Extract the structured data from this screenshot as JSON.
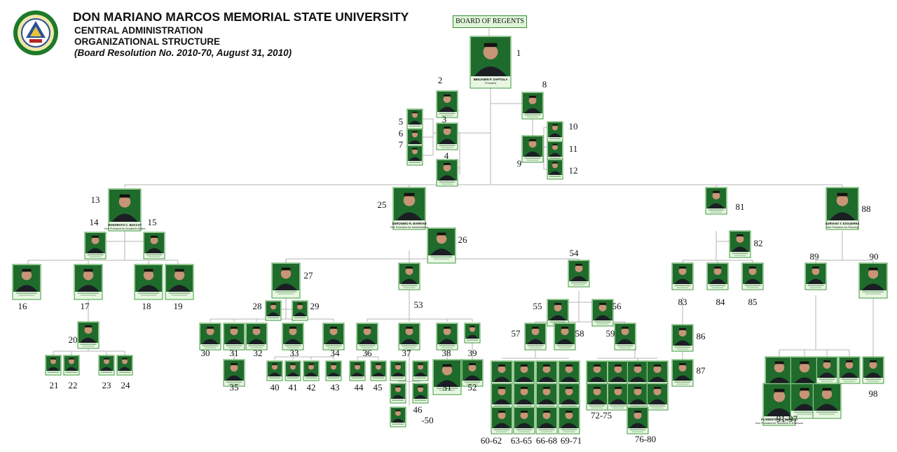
{
  "header": {
    "university": "DON MARIANO MARCOS MEMORIAL STATE UNIVERSITY",
    "line2": "CENTRAL ADMINISTRATION",
    "line3": "ORGANIZATIONAL STRUCTURE",
    "line4": "(Board Resolution No. 2010-70, August 31, 2010)"
  },
  "top_box": "BOARD OF REGENTS",
  "nodes": [
    {
      "size": "xl",
      "caption": "BENJAMIN P. SAPITULA",
      "sub": "President"
    },
    {
      "size": "s"
    },
    {
      "size": "s"
    },
    {
      "size": "s"
    },
    {
      "size": "xs"
    },
    {
      "size": "xs"
    },
    {
      "size": "xs"
    },
    {
      "size": "s"
    },
    {
      "size": "s"
    },
    {
      "size": "xs"
    },
    {
      "size": "xs"
    },
    {
      "size": "xs"
    },
    {
      "size": "l",
      "caption": "HONORATO C. BUCCAT",
      "sub": "Vice President for Academic Affairs"
    },
    {
      "size": "s"
    },
    {
      "size": "s"
    },
    {
      "size": "m"
    },
    {
      "size": "m"
    },
    {
      "size": "m"
    },
    {
      "size": "m"
    },
    {
      "size": "s"
    },
    {
      "size": "xs"
    },
    {
      "size": "xs"
    },
    {
      "size": "xs"
    },
    {
      "size": "xs"
    },
    {
      "size": "l",
      "caption": "GERONIMO R. BARRIAN",
      "sub": "Vice President for Administration"
    },
    {
      "size": "m"
    },
    {
      "size": "m"
    },
    {
      "size": "xs"
    },
    {
      "size": "xs"
    },
    {
      "size": "s"
    },
    {
      "size": "s"
    },
    {
      "size": "s"
    },
    {
      "size": "s"
    },
    {
      "size": "s"
    },
    {
      "size": "s"
    },
    {
      "size": "s"
    },
    {
      "size": "s"
    },
    {
      "size": "s"
    },
    {
      "size": "xs"
    },
    {
      "size": "xs"
    },
    {
      "size": "xs"
    },
    {
      "size": "xs"
    },
    {
      "size": "xs"
    },
    {
      "size": "xs"
    },
    {
      "size": "xs"
    },
    {
      "size": "xs"
    },
    {
      "size": "xs"
    },
    {
      "size": "xs"
    },
    {
      "size": "xs"
    },
    {
      "size": "xs"
    },
    {
      "size": "m"
    },
    {
      "size": "s"
    },
    {
      "size": "s"
    },
    {
      "size": "s"
    },
    {
      "size": "s"
    },
    {
      "size": "s"
    },
    {
      "size": "s"
    },
    {
      "size": "s"
    },
    {
      "size": "s"
    },
    {
      "size": "s"
    },
    {
      "size": "s"
    },
    {
      "size": "s"
    },
    {
      "size": "s"
    },
    {
      "size": "s"
    },
    {
      "size": "s"
    },
    {
      "size": "s"
    },
    {
      "size": "s"
    },
    {
      "size": "s"
    },
    {
      "size": "s"
    },
    {
      "size": "s"
    },
    {
      "size": "s"
    },
    {
      "size": "s"
    },
    {
      "size": "s"
    },
    {
      "size": "s"
    },
    {
      "size": "s"
    },
    {
      "size": "s"
    },
    {
      "size": "s"
    },
    {
      "size": "s"
    },
    {
      "size": "s"
    },
    {
      "size": "s"
    },
    {
      "size": "s"
    },
    {
      "size": "s"
    },
    {
      "size": "s"
    },
    {
      "size": "s"
    },
    {
      "size": "s"
    },
    {
      "size": "s"
    },
    {
      "size": "s"
    },
    {
      "size": "l",
      "caption": "ADRIANO T. ESGUERRA",
      "sub": "Vice President for Planning"
    },
    {
      "size": "s"
    },
    {
      "size": "m"
    },
    {
      "size": "m"
    },
    {
      "size": "m"
    },
    {
      "size": "s"
    },
    {
      "size": "s"
    },
    {
      "size": "l",
      "caption": "FLORENTINO A. DUMLAO",
      "sub": "Vice President for Research & Extension"
    },
    {
      "size": "m"
    },
    {
      "size": "m"
    },
    {
      "size": "s"
    },
    {
      "size": "s"
    },
    {
      "size": "s"
    },
    {
      "size": "s"
    },
    {
      "size": "s"
    },
    {
      "size": "s"
    },
    {
      "size": "s"
    },
    {
      "size": "s"
    },
    {
      "size": "s"
    }
  ],
  "labels": [
    "1",
    "2",
    "3",
    "4",
    "5",
    "6",
    "7",
    "8",
    "9",
    "10",
    "11",
    "12",
    "13",
    "14",
    "15",
    "16",
    "17",
    "18",
    "19",
    "20",
    "21",
    "22",
    "23",
    "24",
    "25",
    "26",
    "27",
    "28",
    "29",
    "30",
    "31",
    "32",
    "33",
    "34",
    "35",
    "36",
    "37",
    "38",
    "39",
    "40",
    "41",
    "42",
    "43",
    "44",
    "45",
    "46",
    "-50",
    "51",
    "52",
    "53",
    "54",
    "55",
    "56",
    "57",
    "58",
    "59",
    "60-62",
    "63-65",
    "66-68",
    "69-71",
    "72-75",
    "76-80",
    "81",
    "82",
    "83",
    "84",
    "85",
    "86",
    "87",
    "88",
    "89",
    "90",
    "91-97",
    "98"
  ],
  "colors": {
    "frame": "#3f9a3f",
    "caption_bg": "#e8f7e2",
    "photo_bg": "#1f6b2c",
    "line": "#b5b5b5",
    "suit": "#1b1f24",
    "skin": "#c89577"
  }
}
